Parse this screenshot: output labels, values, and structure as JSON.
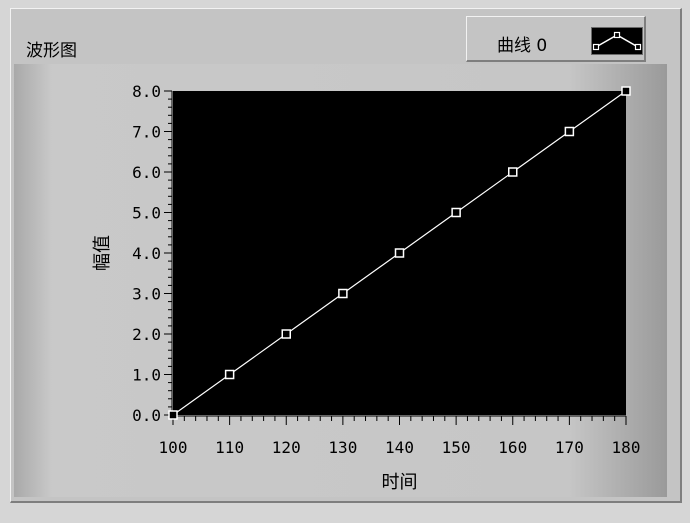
{
  "window": {
    "title": "波形图"
  },
  "legend": {
    "label": "曲线 0",
    "swatch_icon": "line-with-square-markers-icon"
  },
  "colors": {
    "plot_background": "#000000",
    "series_line": "#ffffff",
    "frame": "#c4c4c4"
  },
  "chart_data": {
    "type": "line",
    "title": "波形图",
    "xlabel": "时间",
    "ylabel": "幅值",
    "xlim": [
      100,
      180
    ],
    "ylim": [
      0,
      8
    ],
    "x_ticks": [
      "100",
      "110",
      "120",
      "130",
      "140",
      "150",
      "160",
      "170",
      "180"
    ],
    "y_ticks": [
      "0.0",
      "1.0",
      "2.0",
      "3.0",
      "4.0",
      "5.0",
      "6.0",
      "7.0",
      "8.0"
    ],
    "grid": false,
    "legend_placement": "top-right",
    "series": [
      {
        "name": "曲线 0",
        "x": [
          100,
          110,
          120,
          130,
          140,
          150,
          160,
          170,
          180
        ],
        "y": [
          0,
          1,
          2,
          3,
          4,
          5,
          6,
          7,
          8
        ],
        "marker": "square"
      }
    ]
  }
}
